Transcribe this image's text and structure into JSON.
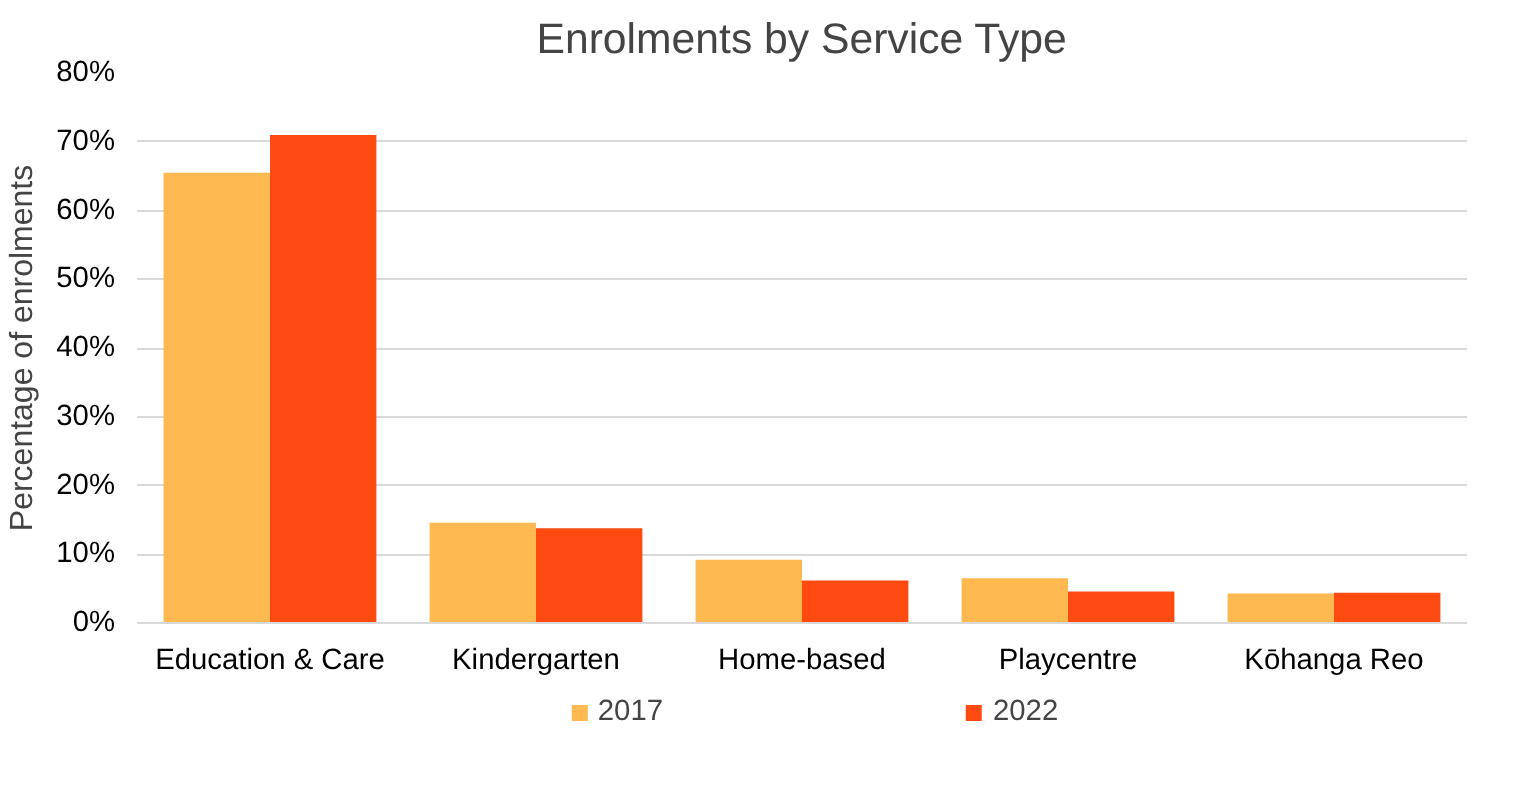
{
  "chart_data": {
    "type": "bar",
    "title": "Enrolments by Service Type",
    "ylabel": "Percentage of enrolments",
    "categories": [
      "Education & Care",
      "Kindergarten",
      "Home-based",
      "Playcentre",
      "Kōhanga Reo"
    ],
    "series": [
      {
        "name": "2017",
        "color": "#ffb951",
        "values": [
          65.5,
          14.6,
          9.2,
          6.5,
          4.3
        ]
      },
      {
        "name": "2022",
        "color": "#ff4b12",
        "values": [
          71,
          13.8,
          6.2,
          4.6,
          4.4
        ]
      }
    ],
    "ylim": [
      0,
      80
    ],
    "yticks": [
      {
        "value": 0,
        "label": "0%"
      },
      {
        "value": 10,
        "label": "10%"
      },
      {
        "value": 20,
        "label": "20%"
      },
      {
        "value": 30,
        "label": "30%"
      },
      {
        "value": 40,
        "label": "40%"
      },
      {
        "value": 50,
        "label": "50%"
      },
      {
        "value": 60,
        "label": "60%"
      },
      {
        "value": 70,
        "label": "70%"
      },
      {
        "value": 80,
        "label": "80%"
      }
    ],
    "grid": "y",
    "legend": "bottom"
  }
}
